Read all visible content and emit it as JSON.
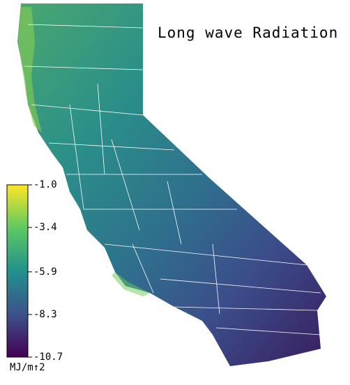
{
  "title": "Long wave Radiation",
  "colorbar": {
    "label": "MJ/m↑2",
    "clim": [
      -10.7,
      -1
    ],
    "ticks": [
      {
        "value": -1,
        "label": "-1.0"
      },
      -3.4,
      -5.9,
      -8.3,
      -10.7
    ],
    "colormap": [
      "#440154",
      "#3b528b",
      "#21918c",
      "#5ec962",
      "#fde725"
    ]
  }
}
